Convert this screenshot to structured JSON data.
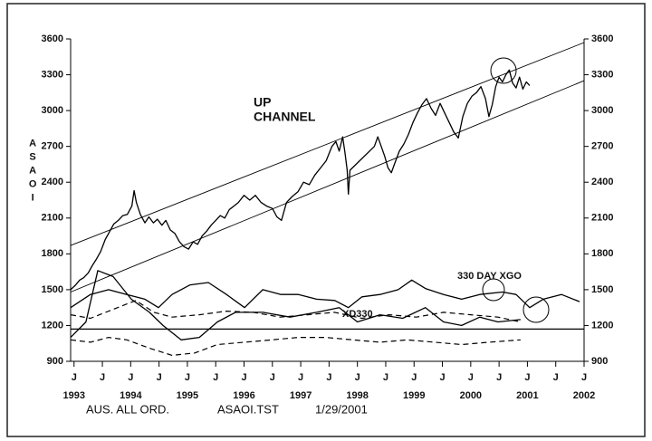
{
  "chart_data": {
    "type": "line",
    "ylabel": "ASAOI",
    "annotations": [
      "UP",
      "CHANNEL",
      "330 DAY XGO",
      "XD330"
    ],
    "footer": [
      "AUS. ALL ORD.",
      "ASAOI.TST",
      "1/29/2001"
    ],
    "xlim": [
      1992.94,
      2002
    ],
    "ylim": [
      900,
      3600
    ],
    "yticks": [
      900,
      1200,
      1500,
      1800,
      2100,
      2400,
      2700,
      3000,
      3300,
      3600
    ],
    "xticks": [
      {
        "value": 1993,
        "label": "J"
      },
      {
        "value": 1993.5,
        "label": "J"
      },
      {
        "value": 1994,
        "label": "J"
      },
      {
        "value": 1994.5,
        "label": "J"
      },
      {
        "value": 1995,
        "label": "J"
      },
      {
        "value": 1995.5,
        "label": "J"
      },
      {
        "value": 1996,
        "label": "J"
      },
      {
        "value": 1996.5,
        "label": "J"
      },
      {
        "value": 1997,
        "label": "J"
      },
      {
        "value": 1997.5,
        "label": "J"
      },
      {
        "value": 1998,
        "label": "J"
      },
      {
        "value": 1998.5,
        "label": "J"
      },
      {
        "value": 1999,
        "label": "J"
      },
      {
        "value": 1999.5,
        "label": "J"
      },
      {
        "value": 2000,
        "label": "J"
      },
      {
        "value": 2000.5,
        "label": "J"
      },
      {
        "value": 2001,
        "label": "J"
      },
      {
        "value": 2001.5,
        "label": "J"
      },
      {
        "value": 2002,
        "label": "J"
      }
    ],
    "year_labels": [
      1993,
      1994,
      1995,
      1996,
      1997,
      1998,
      1999,
      2000,
      2001,
      2002
    ],
    "reference_line": 1170,
    "series": [
      {
        "color": "#000000",
        "width": 1.3,
        "x": [
          1992.94,
          1993.03,
          1993.1,
          1993.17,
          1993.25,
          1993.32,
          1993.4,
          1993.47,
          1993.55,
          1993.62,
          1993.7,
          1993.78,
          1993.86,
          1993.94,
          1994.02,
          1994.06,
          1994.1,
          1994.17,
          1994.25,
          1994.32,
          1994.4,
          1994.47,
          1994.55,
          1994.62,
          1994.7,
          1994.78,
          1994.86,
          1994.94,
          1995.02,
          1995.1,
          1995.18,
          1995.26,
          1995.34,
          1995.42,
          1995.5,
          1995.58,
          1995.66,
          1995.74,
          1995.82,
          1995.9,
          1996.0,
          1996.1,
          1996.2,
          1996.3,
          1996.4,
          1996.5,
          1996.58,
          1996.66,
          1996.75,
          1996.85,
          1996.95,
          1997.05,
          1997.15,
          1997.25,
          1997.35,
          1997.45,
          1997.55,
          1997.62,
          1997.68,
          1997.74,
          1997.78,
          1997.82,
          1997.84,
          1997.87,
          1998.3,
          1998.36,
          1998.42,
          1998.48,
          1998.54,
          1998.6,
          1998.66,
          1998.74,
          1998.82,
          1998.9,
          1998.98,
          1999.06,
          1999.14,
          1999.22,
          1999.3,
          1999.38,
          1999.46,
          1999.54,
          1999.62,
          1999.7,
          1999.78,
          1999.86,
          1999.94,
          2000.02,
          2000.1,
          2000.18,
          2000.26,
          2000.32,
          2000.38,
          2000.44,
          2000.5,
          2000.56,
          2000.62,
          2000.68,
          2000.74,
          2000.8,
          2000.86,
          2000.92,
          2000.98,
          2001.04
        ],
        "values": [
          1500,
          1540,
          1580,
          1600,
          1640,
          1700,
          1760,
          1820,
          1920,
          1980,
          2050,
          2080,
          2120,
          2130,
          2200,
          2330,
          2230,
          2130,
          2060,
          2110,
          2060,
          2090,
          2040,
          2080,
          2000,
          1970,
          1900,
          1860,
          1840,
          1900,
          1880,
          1950,
          1990,
          2040,
          2080,
          2120,
          2100,
          2170,
          2200,
          2230,
          2290,
          2250,
          2290,
          2230,
          2200,
          2180,
          2110,
          2080,
          2230,
          2280,
          2320,
          2400,
          2380,
          2460,
          2520,
          2580,
          2700,
          2740,
          2660,
          2780,
          2650,
          2500,
          2300,
          2500,
          2700,
          2780,
          2700,
          2620,
          2520,
          2480,
          2560,
          2660,
          2720,
          2800,
          2900,
          2980,
          3050,
          3100,
          3020,
          2960,
          3060,
          2980,
          2900,
          2820,
          2770,
          2950,
          3060,
          3120,
          3150,
          3200,
          3100,
          2950,
          3050,
          3200,
          3280,
          3240,
          3300,
          3340,
          3230,
          3190,
          3280,
          3180,
          3240,
          3210
        ]
      },
      {
        "color": "#000000",
        "width": 1.3,
        "x": [
          1992.94,
          1993.29,
          1993.61,
          1993.93,
          1994.25,
          1994.49,
          1994.73,
          1995.05,
          1995.37,
          1995.69,
          1996.01,
          1996.33,
          1996.65,
          1996.96,
          1997.28,
          1997.6,
          1997.84,
          1998.08,
          1998.4,
          1998.72,
          1998.96,
          1999.2,
          1999.52,
          1999.84,
          2000.16,
          2000.56,
          2000.8,
          2001.04,
          2001.28,
          2001.6,
          2001.92
        ],
        "values": [
          1350,
          1460,
          1500,
          1460,
          1420,
          1350,
          1460,
          1540,
          1560,
          1460,
          1350,
          1500,
          1460,
          1460,
          1420,
          1410,
          1350,
          1440,
          1460,
          1500,
          1580,
          1510,
          1460,
          1420,
          1460,
          1480,
          1460,
          1350,
          1420,
          1460,
          1400
        ]
      },
      {
        "color": "#000000",
        "width": 1.3,
        "x": [
          1992.94,
          1993.21,
          1993.42,
          1993.69,
          1994.01,
          1994.33,
          1994.57,
          1994.89,
          1995.21,
          1995.53,
          1995.85,
          1996.33,
          1996.81,
          1997.28,
          1997.68,
          1998.0,
          1998.4,
          1998.8,
          1999.2,
          1999.52,
          1999.84,
          2000.16,
          2000.48,
          2000.88
        ],
        "values": [
          1100,
          1230,
          1660,
          1610,
          1420,
          1310,
          1200,
          1080,
          1100,
          1230,
          1310,
          1310,
          1270,
          1310,
          1350,
          1230,
          1290,
          1260,
          1350,
          1230,
          1200,
          1270,
          1230,
          1250
        ]
      },
      {
        "color": "#000000",
        "width": 1.2,
        "dash": "6 4",
        "x": [
          1992.94,
          1993.29,
          1993.77,
          1994.09,
          1994.41,
          1994.73,
          1995.21,
          1995.69,
          1996.16,
          1996.64,
          1997.12,
          1997.6,
          1998.08,
          1998.56,
          1999.04,
          1999.52,
          2000.0,
          2000.48,
          2000.88
        ],
        "values": [
          1290,
          1260,
          1350,
          1410,
          1310,
          1270,
          1290,
          1320,
          1310,
          1270,
          1290,
          1310,
          1260,
          1290,
          1270,
          1310,
          1290,
          1270,
          1230
        ]
      },
      {
        "color": "#000000",
        "width": 1.2,
        "dash": "6 4",
        "x": [
          1992.94,
          1993.29,
          1993.61,
          1993.93,
          1994.33,
          1994.73,
          1995.13,
          1995.53,
          1996.01,
          1996.49,
          1996.96,
          1997.44,
          1997.92,
          1998.4,
          1998.88,
          1999.36,
          1999.84,
          2000.32,
          2000.88
        ],
        "values": [
          1080,
          1060,
          1100,
          1080,
          1010,
          950,
          970,
          1040,
          1060,
          1080,
          1100,
          1100,
          1080,
          1060,
          1080,
          1060,
          1040,
          1060,
          1080
        ]
      },
      {
        "color": "#000000",
        "width": 0.9,
        "x": [
          1992.94,
          2002
        ],
        "values": [
          1870,
          3570
        ]
      },
      {
        "color": "#000000",
        "width": 0.9,
        "x": [
          1992.94,
          2002
        ],
        "values": [
          1480,
          3250
        ]
      }
    ]
  }
}
